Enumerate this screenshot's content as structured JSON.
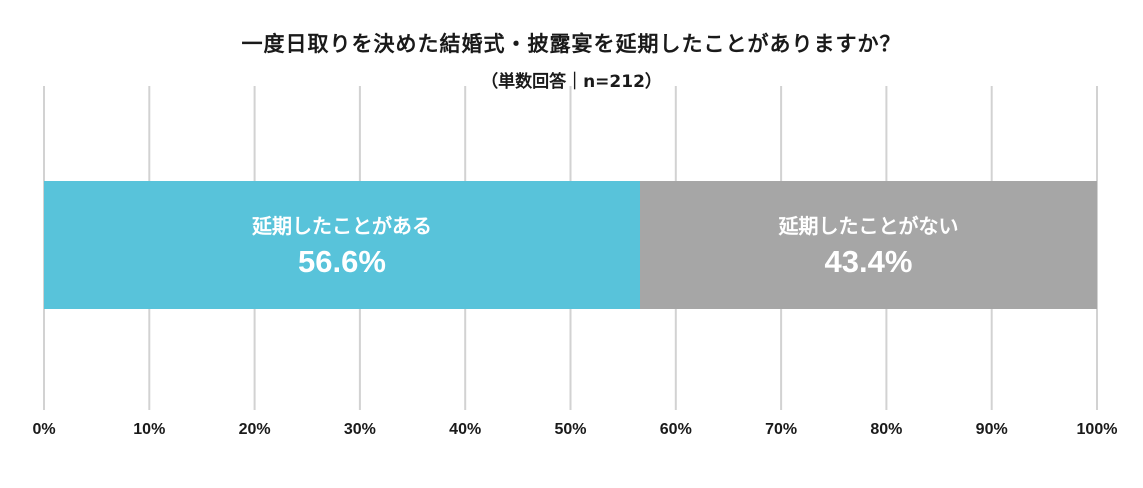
{
  "header": {
    "title": "一度日取りを決めた結婚式・披露宴を延期したことがありますか？",
    "subtitle": "（単数回答｜n=212）"
  },
  "chart_data": {
    "type": "bar",
    "orientation": "horizontal-stacked-100",
    "title": "一度日取りを決めた結婚式・披露宴を延期したことがありますか？",
    "subtitle": "（単数回答｜n=212）",
    "xlim": [
      0,
      100
    ],
    "x_ticks": [
      "0%",
      "10%",
      "20%",
      "30%",
      "40%",
      "50%",
      "60%",
      "70%",
      "80%",
      "90%",
      "100%"
    ],
    "grid": true,
    "series": [
      {
        "name": "延期したことがある",
        "value": 56.6,
        "label": "56.6%",
        "color": "#58C3DA"
      },
      {
        "name": "延期したことがない",
        "value": 43.4,
        "label": "43.4%",
        "color": "#A6A6A6"
      }
    ]
  }
}
